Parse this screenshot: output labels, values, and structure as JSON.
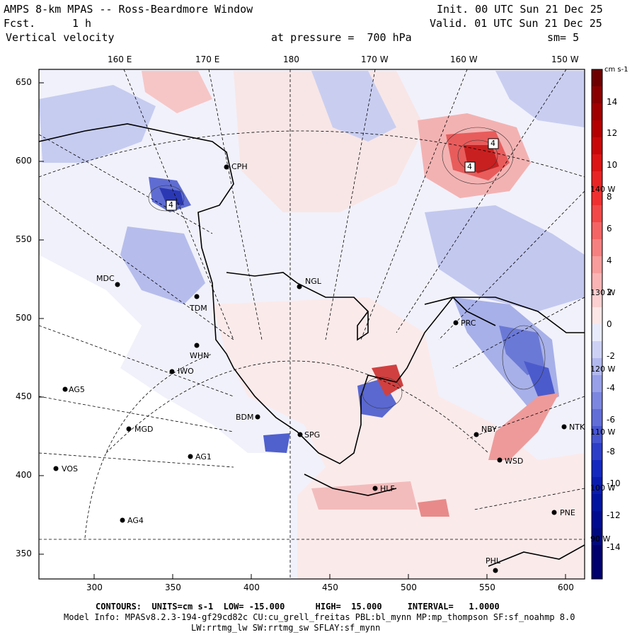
{
  "header": {
    "model": "AMPS 8-km MPAS -- Ross-Beardmore Window",
    "forecast_label": "Fcst.",
    "forecast_value": "1 h",
    "variable": "Vertical velocity",
    "init": "Init. 00 UTC Sun 21 Dec 25",
    "valid": "Valid. 01 UTC Sun 21 Dec 25",
    "pressure": "at pressure =  700 hPa",
    "smoothing": "sm= 5"
  },
  "axes": {
    "top_longitudes": [
      "160 E",
      "170 E",
      "180",
      "170 W",
      "160 W",
      "150 W"
    ],
    "left_ticks": [
      "650",
      "600",
      "550",
      "500",
      "450",
      "400",
      "350"
    ],
    "bottom_ticks": [
      "300",
      "350",
      "400",
      "450",
      "500",
      "550",
      "600"
    ]
  },
  "colorbar": {
    "units": "cm s-1",
    "labels": [
      "14",
      "12",
      "10",
      "8",
      "6",
      "4",
      "2",
      "0",
      "-2",
      "-4",
      "-6",
      "-8",
      "-10",
      "-12",
      "-14"
    ],
    "top_color": "#6e0000",
    "bottom_color": "#00006e"
  },
  "map": {
    "inner_longitude_labels": [
      "140 W",
      "130 W",
      "120 W",
      "110 W",
      "100 W",
      "90 W"
    ],
    "stations": [
      "CPH",
      "MDC",
      "NGL",
      "TDM",
      "WHN",
      "IWO",
      "AG5",
      "MGD",
      "AG1",
      "VOS",
      "AG4",
      "BDM",
      "SPG",
      "HLF",
      "NBY",
      "NTK",
      "WSD",
      "PNE",
      "PHL",
      "PRC"
    ],
    "highlight_values": [
      "4",
      "4",
      "4"
    ],
    "colors": {
      "red": "#e03030",
      "pink": "#f4b0b0",
      "blue": "#3040c0",
      "lightblue": "#b8c0ee",
      "land": "#ffffff"
    }
  },
  "footer": {
    "contours": "CONTOURS:  UNITS=cm s-1  LOW= -15.000      HIGH=  15.000     INTERVAL=   1.0000",
    "model_info": "Model Info: MPASv8.2.3-194-gf29cd82c CU:cu_grell_freitas PBL:bl_mynn MP:mp_thompson SF:sf_noahmp 8.0",
    "model_info_2": "LW:rrtmg_lw SW:rrtmg_sw SFLAY:sf_mynn"
  }
}
